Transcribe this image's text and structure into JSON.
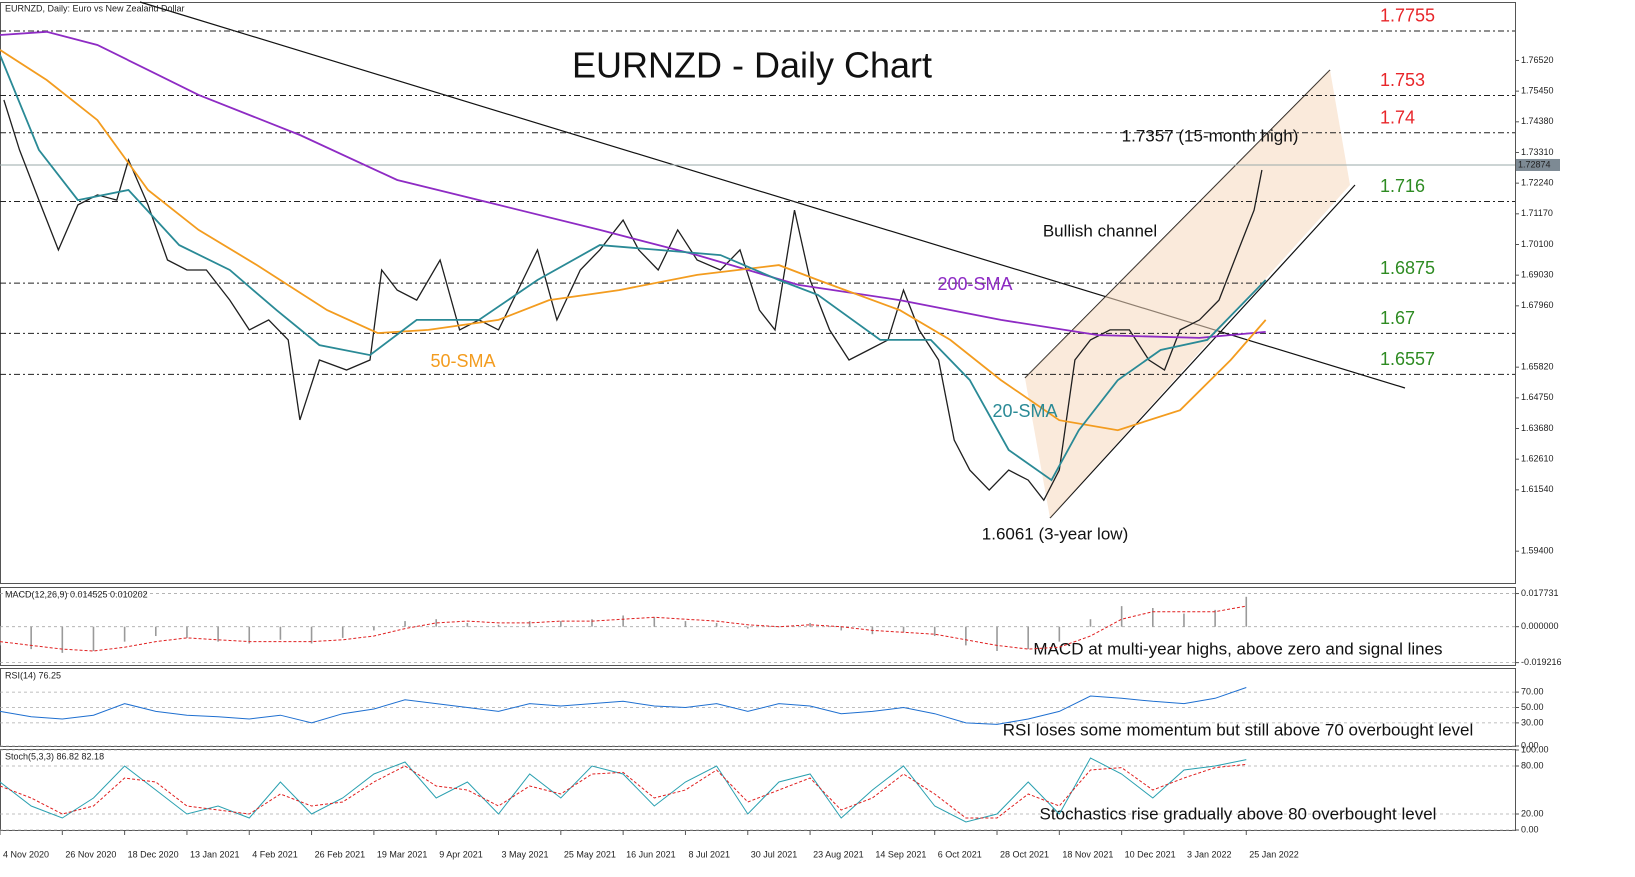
{
  "chart_data": [
    {
      "type": "line",
      "title": "EURNZD - Daily Chart",
      "subtitle": "EURNZD, Daily:  Euro vs New Zealand Dollar",
      "xlim": [
        0,
        389
      ],
      "xticks": [
        {
          "value": 0,
          "label": "4 Nov 2020"
        },
        {
          "value": 16,
          "label": "26 Nov 2020"
        },
        {
          "value": 32,
          "label": "18 Dec 2020"
        },
        {
          "value": 48,
          "label": "13 Jan 2021"
        },
        {
          "value": 64,
          "label": "4 Feb 2021"
        },
        {
          "value": 80,
          "label": "26 Feb 2021"
        },
        {
          "value": 96,
          "label": "19 Mar 2021"
        },
        {
          "value": 112,
          "label": "9 Apr 2021"
        },
        {
          "value": 128,
          "label": "3 May 2021"
        },
        {
          "value": 144,
          "label": "25 May 2021"
        },
        {
          "value": 160,
          "label": "16 Jun 2021"
        },
        {
          "value": 176,
          "label": "8 Jul 2021"
        },
        {
          "value": 192,
          "label": "30 Jul 2021"
        },
        {
          "value": 208,
          "label": "23 Aug 2021"
        },
        {
          "value": 224,
          "label": "14 Sep 2021"
        },
        {
          "value": 240,
          "label": "6 Oct 2021"
        },
        {
          "value": 256,
          "label": "28 Oct 2021"
        },
        {
          "value": 272,
          "label": "18 Nov 2021"
        },
        {
          "value": 288,
          "label": "10 Dec 2021"
        },
        {
          "value": 304,
          "label": "3 Jan 2022"
        },
        {
          "value": 320,
          "label": "25 Jan 2022"
        }
      ],
      "ylim": [
        1.5829,
        1.7856
      ],
      "yticks": [
        {
          "value": 1.7652,
          "label": "1.76520"
        },
        {
          "value": 1.7545,
          "label": "1.75450"
        },
        {
          "value": 1.7438,
          "label": "1.74380"
        },
        {
          "value": 1.7331,
          "label": "1.73310"
        },
        {
          "value": 1.7224,
          "label": "1.72240"
        },
        {
          "value": 1.7117,
          "label": "1.71170"
        },
        {
          "value": 1.701,
          "label": "1.70100"
        },
        {
          "value": 1.6903,
          "label": "1.69030"
        },
        {
          "value": 1.6796,
          "label": "1.67960"
        },
        {
          "value": 1.6582,
          "label": "1.65820"
        },
        {
          "value": 1.6475,
          "label": "1.64750"
        },
        {
          "value": 1.6368,
          "label": "1.63680"
        },
        {
          "value": 1.6261,
          "label": "1.62610"
        },
        {
          "value": 1.6154,
          "label": "1.61540"
        },
        {
          "value": 1.594,
          "label": "1.59400"
        }
      ],
      "current_price": {
        "value": 1.72874,
        "label": "1.72874"
      },
      "levels": [
        {
          "value": 1.7755,
          "color": "#e8262a"
        },
        {
          "value": 1.753,
          "color": "#e8262a"
        },
        {
          "value": 1.74,
          "color": "#e8262a"
        },
        {
          "value": 1.716,
          "color": "#2e8b22"
        },
        {
          "value": 1.6875,
          "color": "#2e8b22"
        },
        {
          "value": 1.67,
          "color": "#2e8b22"
        },
        {
          "value": 1.6557,
          "color": "#2e8b22"
        }
      ],
      "annotations": [
        "1.7357 (15-month high)",
        "Bullish channel",
        "1.6061 (3-year low)"
      ],
      "series": [
        {
          "color": "#1f1f1f",
          "x": [
            1,
            5,
            10,
            15,
            20,
            25,
            30,
            33,
            38,
            43,
            48,
            53,
            59,
            64,
            69,
            74,
            77,
            82,
            89,
            95,
            98,
            102,
            107,
            113,
            118,
            123,
            128,
            133,
            138,
            143,
            149,
            154,
            160,
            164,
            169,
            174,
            179,
            185,
            190,
            195,
            199,
            204,
            208,
            213,
            218,
            223,
            228,
            232,
            236,
            241,
            245,
            249,
            254,
            259,
            264,
            268,
            272,
            276,
            280,
            285,
            290,
            295,
            299,
            303,
            308,
            313,
            318,
            322,
            324
          ],
          "values": [
            1.7514,
            1.734,
            1.7165,
            1.6991,
            1.7148,
            1.7183,
            1.7165,
            1.7305,
            1.7148,
            1.6956,
            1.6921,
            1.6921,
            1.6816,
            1.6712,
            1.6747,
            1.6677,
            1.6398,
            1.6607,
            1.6572,
            1.6607,
            1.6921,
            1.6851,
            1.6816,
            1.6956,
            1.6712,
            1.6747,
            1.6712,
            1.6851,
            1.6991,
            1.6747,
            1.6921,
            1.6991,
            1.7095,
            1.6991,
            1.6921,
            1.7061,
            1.6956,
            1.6921,
            1.6991,
            1.6781,
            1.6712,
            1.713,
            1.6886,
            1.6712,
            1.6607,
            1.6642,
            1.6677,
            1.6851,
            1.6712,
            1.6607,
            1.6328,
            1.6223,
            1.6153,
            1.6223,
            1.6188,
            1.6118,
            1.6223,
            1.6607,
            1.6677,
            1.6712,
            1.6712,
            1.6607,
            1.6572,
            1.6712,
            1.6747,
            1.6816,
            1.6991,
            1.713,
            1.727
          ]
        },
        {
          "name": "200-SMA",
          "color": "#8e2bc4",
          "x": [
            0,
            12,
            25,
            38,
            51,
            77,
            102,
            128,
            154,
            179,
            205,
            231,
            257,
            282,
            308,
            325
          ],
          "values": [
            1.7741,
            1.7752,
            1.7706,
            1.7619,
            1.7532,
            1.7392,
            1.7235,
            1.7148,
            1.7061,
            1.6973,
            1.6869,
            1.6816,
            1.6747,
            1.6694,
            1.6684,
            1.6705
          ]
        },
        {
          "name": "50-SMA",
          "color": "#f39c1f",
          "x": [
            0,
            12,
            25,
            38,
            51,
            66,
            84,
            97,
            110,
            128,
            141,
            159,
            179,
            200,
            210,
            231,
            244,
            257,
            272,
            287,
            303,
            316,
            325
          ],
          "values": [
            1.7689,
            1.7584,
            1.7444,
            1.72,
            1.7061,
            1.6938,
            1.6781,
            1.6701,
            1.6712,
            1.6747,
            1.6816,
            1.6851,
            1.6904,
            1.6938,
            1.6886,
            1.6781,
            1.6677,
            1.6537,
            1.6397,
            1.6362,
            1.6432,
            1.6607,
            1.6747
          ]
        },
        {
          "name": "20-SMA",
          "color": "#2a8a96",
          "x": [
            0,
            10,
            20,
            33,
            46,
            59,
            71,
            82,
            95,
            107,
            123,
            138,
            154,
            169,
            185,
            200,
            210,
            226,
            239,
            249,
            259,
            270,
            277,
            287,
            298,
            310,
            325
          ],
          "values": [
            1.7671,
            1.734,
            1.7165,
            1.72,
            1.7008,
            1.6921,
            1.6781,
            1.6659,
            1.6624,
            1.6747,
            1.6747,
            1.6886,
            1.7008,
            1.6991,
            1.6973,
            1.6886,
            1.6834,
            1.6677,
            1.6677,
            1.6537,
            1.6293,
            1.6188,
            1.6362,
            1.6537,
            1.6642,
            1.6677,
            1.6886
          ]
        }
      ]
    },
    {
      "type": "macd",
      "title": "MACD(12,26,9) 0.014525 0.010202",
      "annotation": "MACD at multi-year highs, above zero and signal lines",
      "xlim": [
        0,
        389
      ],
      "ylim": [
        -0.0205,
        0.0207
      ],
      "yticks": [
        0.017731,
        {
          "value": 0,
          "label": "0.000000"
        },
        -0.019216
      ],
      "x": [
        0,
        8,
        16,
        24,
        32,
        40,
        48,
        56,
        64,
        72,
        80,
        88,
        96,
        104,
        112,
        120,
        128,
        136,
        144,
        152,
        160,
        168,
        176,
        184,
        192,
        200,
        208,
        216,
        224,
        232,
        240,
        248,
        256,
        264,
        272,
        280,
        288,
        296,
        304,
        312,
        320
      ],
      "series": [
        {
          "color": "#9a9a9a",
          "values": [
            -0.01,
            -0.012,
            -0.014,
            -0.013,
            -0.008,
            -0.005,
            -0.006,
            -0.008,
            -0.009,
            -0.007,
            -0.009,
            -0.006,
            -0.002,
            0.003,
            0.004,
            0.002,
            0.001,
            0.003,
            0.003,
            0.004,
            0.006,
            0.005,
            0.003,
            0.002,
            -0.001,
            0,
            0.002,
            -0.002,
            -0.004,
            -0.003,
            -0.005,
            -0.01,
            -0.013,
            -0.012,
            -0.008,
            0.004,
            0.011,
            0.01,
            0.007,
            0.009,
            0.016
          ]
        },
        {
          "color": "#e02020",
          "values": [
            -0.008,
            -0.01,
            -0.012,
            -0.013,
            -0.011,
            -0.008,
            -0.006,
            -0.007,
            -0.008,
            -0.008,
            -0.008,
            -0.007,
            -0.005,
            -0.001,
            0.002,
            0.003,
            0.002,
            0.002,
            0.003,
            0.003,
            0.004,
            0.005,
            0.004,
            0.003,
            0.001,
            0,
            0.001,
            0,
            -0.002,
            -0.003,
            -0.004,
            -0.007,
            -0.01,
            -0.012,
            -0.011,
            -0.005,
            0.004,
            0.008,
            0.008,
            0.008,
            0.011
          ]
        }
      ]
    },
    {
      "type": "oscillator",
      "title": "RSI(14) 76.25",
      "annotation": "RSI loses some momentum but still above 70 overbought level",
      "xlim": [
        0,
        389
      ],
      "ylim": [
        0,
        100
      ],
      "yticks": [
        {
          "value": 70,
          "label": "70.00"
        },
        {
          "value": 50,
          "label": "50.00"
        },
        {
          "value": 30,
          "label": "30.00"
        },
        {
          "value": 0,
          "label": "0.00"
        }
      ],
      "x": [
        0,
        8,
        16,
        24,
        32,
        40,
        48,
        56,
        64,
        72,
        80,
        88,
        96,
        104,
        112,
        120,
        128,
        136,
        144,
        152,
        160,
        168,
        176,
        184,
        192,
        200,
        208,
        216,
        224,
        232,
        240,
        248,
        256,
        264,
        272,
        280,
        288,
        296,
        304,
        312,
        320
      ],
      "series": [
        {
          "color": "#1e6fd0",
          "values": [
            45,
            38,
            35,
            40,
            55,
            45,
            40,
            38,
            35,
            40,
            30,
            42,
            48,
            60,
            55,
            50,
            45,
            55,
            52,
            55,
            58,
            52,
            50,
            55,
            45,
            55,
            52,
            42,
            45,
            50,
            42,
            30,
            28,
            35,
            45,
            65,
            62,
            58,
            55,
            62,
            76
          ]
        }
      ]
    },
    {
      "type": "oscillator",
      "title": "Stoch(5,3,3) 86.82 82.18",
      "annotation": "Stochastics rise gradually above 80 overbought level",
      "xlim": [
        0,
        389
      ],
      "ylim": [
        0,
        100
      ],
      "yticks": [
        {
          "value": 100,
          "label": "100.00"
        },
        {
          "value": 80,
          "label": "80.00"
        },
        {
          "value": 20,
          "label": "20.00"
        },
        {
          "value": 0,
          "label": "0.00"
        }
      ],
      "x": [
        0,
        8,
        16,
        24,
        32,
        40,
        48,
        56,
        64,
        72,
        80,
        88,
        96,
        104,
        112,
        120,
        128,
        136,
        144,
        152,
        160,
        168,
        176,
        184,
        192,
        200,
        208,
        216,
        224,
        232,
        240,
        248,
        256,
        264,
        272,
        280,
        288,
        296,
        304,
        312,
        320
      ],
      "series": [
        {
          "color": "#2aa0b0",
          "values": [
            60,
            30,
            15,
            40,
            80,
            50,
            20,
            30,
            15,
            60,
            20,
            40,
            70,
            85,
            40,
            60,
            20,
            70,
            40,
            80,
            70,
            30,
            60,
            80,
            20,
            60,
            70,
            15,
            50,
            80,
            30,
            10,
            20,
            60,
            20,
            90,
            70,
            40,
            75,
            80,
            88
          ]
        },
        {
          "color": "#e02020",
          "values": [
            55,
            40,
            20,
            30,
            65,
            60,
            30,
            25,
            20,
            45,
            30,
            35,
            60,
            80,
            55,
            50,
            30,
            55,
            45,
            70,
            72,
            40,
            50,
            75,
            35,
            50,
            65,
            25,
            40,
            70,
            45,
            15,
            15,
            45,
            30,
            75,
            78,
            50,
            65,
            78,
            82
          ]
        }
      ]
    }
  ]
}
